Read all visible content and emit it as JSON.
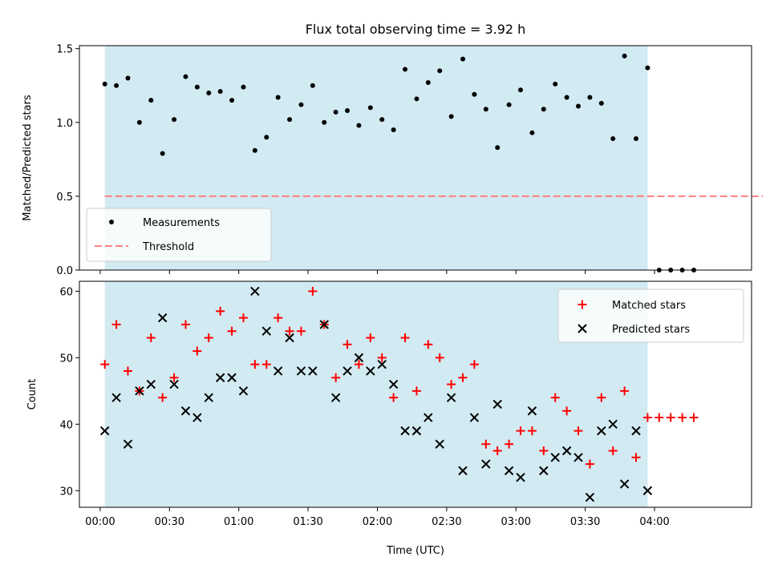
{
  "chart_data": [
    {
      "type": "scatter",
      "title": "Flux total observing time = 3.92 h",
      "xlabel": "",
      "ylabel": "Matched/Predicted stars",
      "ylim": [
        0,
        1.52
      ],
      "yticks": [
        "0.0",
        "0.5",
        "1.0",
        "1.5"
      ],
      "observing_window": {
        "start_min": 2,
        "end_min": 237,
        "color": "#add8e6"
      },
      "threshold": {
        "label": "Threshold",
        "value": 0.5,
        "x_start_min": 2,
        "x_end_min": 287,
        "color": "#ff7f7f"
      },
      "legend": {
        "position": "lower-left",
        "entries": [
          "Measurements",
          "Threshold"
        ]
      },
      "series": [
        {
          "name": "Measurements",
          "color": "#000000",
          "x_min": [
            2,
            7,
            12,
            17,
            22,
            27,
            32,
            37,
            42,
            47,
            52,
            57,
            62,
            67,
            72,
            77,
            82,
            87,
            92,
            97,
            102,
            107,
            112,
            117,
            122,
            127,
            132,
            137,
            142,
            147,
            152,
            157,
            162,
            167,
            172,
            177,
            182,
            187,
            192,
            197,
            202,
            207,
            212,
            217,
            222,
            227,
            232,
            237,
            242,
            247,
            252,
            257
          ],
          "y": [
            1.26,
            1.25,
            1.3,
            1.0,
            1.15,
            0.79,
            1.02,
            1.31,
            1.24,
            1.2,
            1.21,
            1.15,
            1.24,
            0.81,
            0.9,
            1.17,
            1.02,
            1.12,
            1.25,
            1.0,
            1.07,
            1.08,
            0.98,
            1.1,
            1.02,
            0.95,
            1.36,
            1.16,
            1.27,
            1.35,
            1.04,
            1.43,
            1.19,
            1.09,
            0.83,
            1.12,
            1.22,
            0.93,
            1.09,
            1.26,
            1.17,
            1.11,
            1.17,
            1.13,
            0.89,
            1.45,
            0.89,
            1.37,
            0.0,
            0.0,
            0.0,
            0.0
          ]
        }
      ]
    },
    {
      "type": "scatter",
      "xlabel": "Time (UTC)",
      "ylabel": "Count",
      "ylim": [
        27.5,
        61.5
      ],
      "yticks": [
        "30",
        "40",
        "50",
        "60"
      ],
      "xlim_min": [
        -9,
        282
      ],
      "xticks": [
        "00:00",
        "00:30",
        "01:00",
        "01:30",
        "02:00",
        "02:30",
        "03:00",
        "03:30",
        "04:00"
      ],
      "observing_window": {
        "start_min": 2,
        "end_min": 237,
        "color": "#add8e6"
      },
      "legend": {
        "position": "top-right",
        "entries": [
          "Matched stars",
          "Predicted stars"
        ]
      },
      "series": [
        {
          "name": "Matched stars",
          "marker": "plus",
          "color": "#ff0000",
          "x_min": [
            2,
            7,
            12,
            17,
            22,
            27,
            32,
            37,
            42,
            47,
            52,
            57,
            62,
            67,
            72,
            77,
            82,
            87,
            92,
            97,
            102,
            107,
            112,
            117,
            122,
            127,
            132,
            137,
            142,
            147,
            152,
            157,
            162,
            167,
            172,
            177,
            182,
            187,
            192,
            197,
            202,
            207,
            212,
            217,
            222,
            227,
            232,
            237,
            242,
            247,
            252,
            257
          ],
          "y": [
            49,
            55,
            48,
            45,
            53,
            44,
            47,
            55,
            51,
            53,
            57,
            54,
            56,
            49,
            49,
            56,
            54,
            54,
            60,
            55,
            47,
            52,
            49,
            53,
            50,
            44,
            53,
            45,
            52,
            50,
            46,
            47,
            49,
            37,
            36,
            37,
            39,
            39,
            36,
            44,
            42,
            39,
            34,
            44,
            36,
            45,
            35,
            41,
            41,
            41,
            41,
            41
          ]
        },
        {
          "name": "Predicted stars",
          "marker": "x",
          "color": "#000000",
          "x_min": [
            2,
            7,
            12,
            17,
            22,
            27,
            32,
            37,
            42,
            47,
            52,
            57,
            62,
            67,
            72,
            77,
            82,
            87,
            92,
            97,
            102,
            107,
            112,
            117,
            122,
            127,
            132,
            137,
            142,
            147,
            152,
            157,
            162,
            167,
            172,
            177,
            182,
            187,
            192,
            197,
            202,
            207,
            212,
            217,
            222,
            227,
            232,
            237
          ],
          "y": [
            39,
            44,
            37,
            45,
            46,
            56,
            46,
            42,
            41,
            44,
            47,
            47,
            45,
            60,
            54,
            48,
            53,
            48,
            48,
            55,
            44,
            48,
            50,
            48,
            49,
            46,
            39,
            39,
            41,
            37,
            44,
            33,
            41,
            34,
            43,
            33,
            32,
            42,
            33,
            35,
            36,
            35,
            29,
            39,
            40,
            31,
            39,
            30
          ]
        }
      ]
    }
  ]
}
